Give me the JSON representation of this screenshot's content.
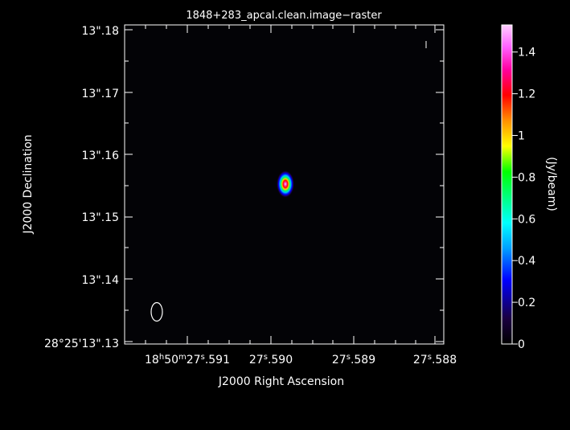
{
  "chart_data": {
    "type": "heatmap",
    "title": "1848+283_apcal.clean.image−raster",
    "xlabel": "J2000 Right Ascension",
    "ylabel": "J2000 Declination",
    "colorbar_label": "(Jy/beam)",
    "x_tick_labels": [
      "18h50m27s.591",
      "27s.590",
      "27s.589",
      "27s.588"
    ],
    "y_tick_labels": [
      "13\".18",
      "13\".17",
      "13\".16",
      "13\".15",
      "13\".14",
      "28°25'13\".13"
    ],
    "colorbar_ticks": [
      0,
      0.2,
      0.4,
      0.6,
      0.8,
      1,
      1.2,
      1.4
    ],
    "colorbar_range": [
      0,
      1.53
    ],
    "source": {
      "ra_s": 27.5898,
      "dec_arcsec": 13.1555,
      "peak_jy_per_beam": 1.53
    },
    "beam": "ellipse, lower-left",
    "colormap_stops": [
      "#000000",
      "#1a0040",
      "#0000ff",
      "#00a0ff",
      "#00ffff",
      "#00ff80",
      "#00ff00",
      "#ffff00",
      "#ff9000",
      "#ff0000",
      "#ff00a0",
      "#ff60ff",
      "#ffd0ff"
    ]
  },
  "x_ticks": {
    "t0": {
      "pre": "18",
      "h": "h",
      "mid": "50",
      "m": "m",
      "mid2": "27",
      "s": "s",
      "post": ".591"
    },
    "t1": {
      "pre": "27",
      "s": "s",
      "post": ".590"
    },
    "t2": {
      "pre": "27",
      "s": "s",
      "post": ".589"
    },
    "t3": {
      "pre": "27",
      "s": "s",
      "post": ".588"
    }
  }
}
